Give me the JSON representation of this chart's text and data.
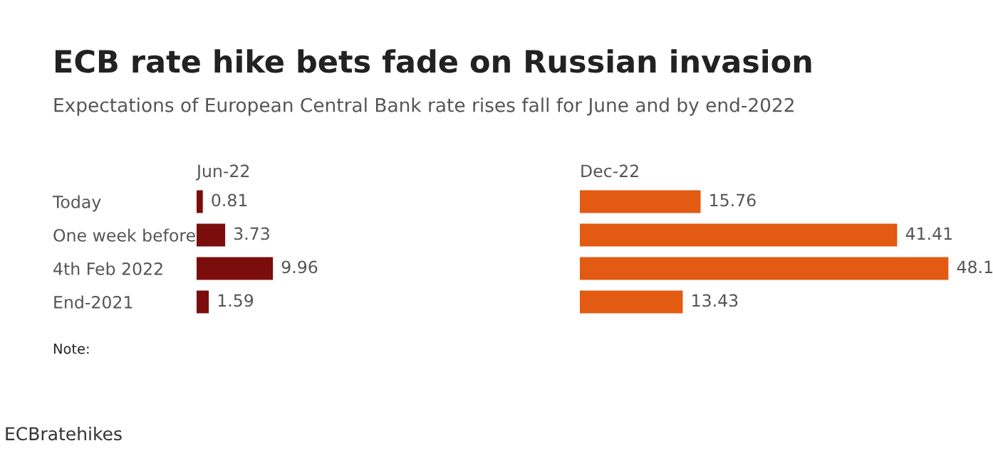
{
  "chart_data": [
    {
      "type": "bar",
      "orientation": "horizontal",
      "title": "ECB rate hike bets fade on Russian invasion",
      "subtitle": "Expectations of European Central Bank rate rises fall for June and by end-2022",
      "xlabel": "Jun-22",
      "categories": [
        "Today",
        "One week before",
        "4th Feb 2022",
        "End-2021"
      ],
      "values": [
        0.81,
        3.73,
        9.96,
        1.59
      ],
      "color": "#7b0d0d",
      "data_labels": true,
      "tick_labels": "y",
      "annotations": [
        "Note:",
        "ECBratehikes"
      ]
    },
    {
      "type": "bar",
      "orientation": "horizontal",
      "xlabel": "Dec-22",
      "categories": [
        null,
        null,
        null,
        null
      ],
      "values": [
        15.76,
        41.41,
        48.1,
        13.43
      ],
      "color": "#e35a12",
      "data_labels": true,
      "tick_labels": false
    }
  ]
}
